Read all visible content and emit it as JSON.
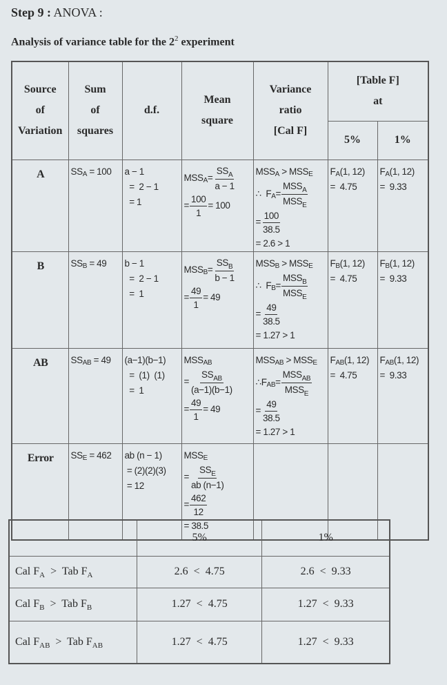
{
  "step": {
    "label": "Step 9 :",
    "title": "ANOVA :"
  },
  "caption": {
    "text": "Analysis of variance table for the 2",
    "sup": "2",
    "text_end": " experiment"
  },
  "headers": {
    "source": [
      "Source",
      "of",
      "Variation"
    ],
    "ss": [
      "Sum",
      "of",
      "squares"
    ],
    "df": "d.f.",
    "ms": [
      "Mean",
      "square"
    ],
    "vr": [
      "Variance",
      "ratio",
      "[Cal F]"
    ],
    "table_f": [
      "[Table F]",
      "at"
    ],
    "p5": "5%",
    "p1": "1%"
  },
  "rows": [
    {
      "source": "A",
      "ss": [
        [
          "SS",
          {
            "sub": "A"
          },
          " = 100"
        ]
      ],
      "df": [
        [
          "a − 1"
        ],
        [
          "  =  2 − 1"
        ],
        [
          "  = 1"
        ]
      ],
      "ms": [
        [
          "MSS",
          {
            "sub": "A"
          },
          "=",
          {
            "frac": [
              [
                "SS",
                {
                  "sub": "A"
                }
              ],
              [
                "a − 1"
              ]
            ]
          }
        ],
        [
          "=",
          {
            "frac": [
              [
                "100"
              ],
              [
                "1"
              ]
            ]
          },
          "= 100"
        ]
      ],
      "vr": [
        [
          "MSS",
          {
            "sub": "A"
          },
          " > MSS",
          {
            "sub": "E"
          }
        ],
        [
          "∴  F",
          {
            "sub": "A"
          },
          "=",
          {
            "frac": [
              [
                "MSS",
                {
                  "sub": "A"
                }
              ],
              [
                "MSS",
                {
                  "sub": "E"
                }
              ]
            ]
          }
        ],
        [
          "=",
          {
            "frac": [
              [
                "100"
              ],
              [
                "38.5"
              ]
            ]
          }
        ],
        [
          "= 2.6 > 1"
        ]
      ],
      "f5": [
        [
          "F",
          {
            "sub": "A"
          },
          "(1, 12)"
        ],
        [
          "=  4.75"
        ]
      ],
      "f1": [
        [
          "F",
          {
            "sub": "A"
          },
          "(1, 12)"
        ],
        [
          "=  9.33"
        ]
      ]
    },
    {
      "source": "B",
      "ss": [
        [
          "SS",
          {
            "sub": "B"
          },
          " = 49"
        ]
      ],
      "df": [
        [
          "b − 1"
        ],
        [
          "  =  2 − 1"
        ],
        [
          "  =  1"
        ]
      ],
      "ms": [
        [
          "MSS",
          {
            "sub": "B"
          },
          "=",
          {
            "frac": [
              [
                "SS",
                {
                  "sub": "B"
                }
              ],
              [
                "b − 1"
              ]
            ]
          }
        ],
        [
          "=",
          {
            "frac": [
              [
                "49"
              ],
              [
                "1"
              ]
            ]
          },
          "= 49"
        ]
      ],
      "vr": [
        [
          "MSS",
          {
            "sub": "B"
          },
          " > MSS",
          {
            "sub": "E"
          }
        ],
        [
          "∴  F",
          {
            "sub": "B"
          },
          "=",
          {
            "frac": [
              [
                "MSS",
                {
                  "sub": "B"
                }
              ],
              [
                "MSS",
                {
                  "sub": "E"
                }
              ]
            ]
          }
        ],
        [
          "=",
          {
            "frac": [
              [
                "49"
              ],
              [
                "38.5"
              ]
            ]
          }
        ],
        [
          "= 1.27 > 1"
        ]
      ],
      "f5": [
        [
          "F",
          {
            "sub": "B"
          },
          "(1, 12)"
        ],
        [
          "=  4.75"
        ]
      ],
      "f1": [
        [
          "F",
          {
            "sub": "B"
          },
          "(1, 12)"
        ],
        [
          "=  9.33"
        ]
      ]
    },
    {
      "source": "AB",
      "ss": [
        [
          "SS",
          {
            "sub": "AB"
          },
          " = 49"
        ]
      ],
      "df": [
        [
          "(a−1)(b−1)"
        ],
        [
          "  =  (1)  (1)"
        ],
        [
          "  =  1"
        ]
      ],
      "ms": [
        [
          "MSS",
          {
            "sub": "AB"
          }
        ],
        [
          "=",
          {
            "frac": [
              [
                "SS",
                {
                  "sub": "AB"
                }
              ],
              [
                "(a−1)(b−1)"
              ]
            ]
          }
        ],
        [
          "=",
          {
            "frac": [
              [
                "49"
              ],
              [
                "1"
              ]
            ]
          },
          "= 49"
        ]
      ],
      "vr": [
        [
          "MSS",
          {
            "sub": "AB"
          },
          " > MSS",
          {
            "sub": "E"
          }
        ],
        [
          "∴F",
          {
            "sub": "AB"
          },
          "=",
          {
            "frac": [
              [
                "MSS",
                {
                  "sub": "AB"
                }
              ],
              [
                "MSS",
                {
                  "sub": "E"
                }
              ]
            ]
          }
        ],
        [
          "=",
          {
            "frac": [
              [
                "49"
              ],
              [
                "38.5"
              ]
            ]
          }
        ],
        [
          "= 1.27 > 1"
        ]
      ],
      "f5": [
        [
          "F",
          {
            "sub": "AB"
          },
          "(1, 12)"
        ],
        [
          "=  4.75"
        ]
      ],
      "f1": [
        [
          "F",
          {
            "sub": "AB"
          },
          "(1, 12)"
        ],
        [
          "=  9.33"
        ]
      ]
    },
    {
      "source": "Error",
      "ss": [
        [
          "SS",
          {
            "sub": "E"
          },
          " = 462"
        ]
      ],
      "df": [
        [
          "ab (n − 1)"
        ],
        [
          " = (2)(2)(3)"
        ],
        [
          " = 12"
        ]
      ],
      "ms": [
        [
          "MSS",
          {
            "sub": "E"
          }
        ],
        [
          "=",
          {
            "frac": [
              [
                "SS",
                {
                  "sub": "E"
                }
              ],
              [
                "ab (n−1)"
              ]
            ]
          }
        ],
        [
          "=",
          {
            "frac": [
              [
                "462"
              ],
              [
                "12"
              ]
            ]
          }
        ],
        [
          "= 38.5"
        ]
      ],
      "vr": [],
      "f5": [],
      "f1": []
    }
  ],
  "comparison": {
    "headers": [
      "",
      "5%",
      "1%"
    ],
    "rows": [
      {
        "label": [
          "Cal F",
          {
            "sub": "A"
          },
          "  >  Tab F",
          {
            "sub": "A"
          }
        ],
        "p5": "2.6  <  4.75",
        "p1": "2.6  <  9.33"
      },
      {
        "label": [
          "Cal F",
          {
            "sub": "B"
          },
          "  >  Tab F",
          {
            "sub": "B"
          }
        ],
        "p5": "1.27  <  4.75",
        "p1": "1.27  <  9.33"
      },
      {
        "label": [
          "Cal F",
          {
            "sub": "AB"
          },
          "  >  Tab F",
          {
            "sub": "AB"
          }
        ],
        "p5": "1.27  <  4.75",
        "p1": "1.27  <  9.33"
      }
    ]
  }
}
